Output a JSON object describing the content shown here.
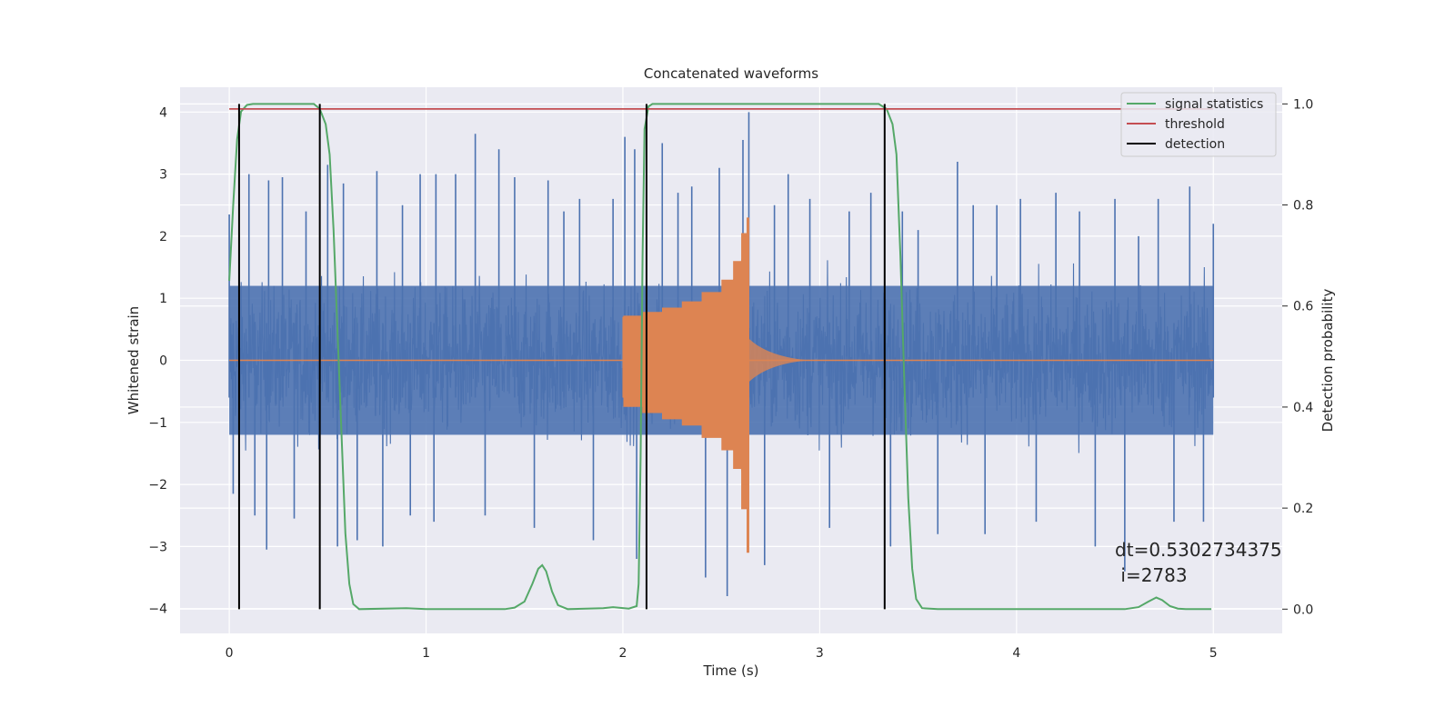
{
  "chart_data": {
    "type": "line",
    "title": "Concatenated waveforms",
    "xlabel": "Time (s)",
    "ylabel": "Whitened strain",
    "y2label": "Detection probability",
    "xlim": [
      -0.25,
      5.35
    ],
    "ylim": [
      -4.4,
      4.4
    ],
    "y2lim": [
      -0.048,
      1.033
    ],
    "xticks": [
      0,
      1,
      2,
      3,
      4,
      5
    ],
    "yticks": [
      -4,
      -3,
      -2,
      -1,
      0,
      1,
      2,
      3,
      4
    ],
    "y2ticks": [
      0.0,
      0.2,
      0.4,
      0.6,
      0.8,
      1.0
    ],
    "grid": true,
    "legend_position": "top-right",
    "annotation": {
      "line1": "dt=0.5302734375",
      "line2": " i=2783",
      "x": 4.5,
      "y": -3.05
    },
    "series": [
      {
        "name": "",
        "kind": "noise",
        "axis": "left",
        "color": "#4c72b0",
        "x_range": [
          0,
          5
        ],
        "spike_samples": [
          [
            0.0,
            2.35
          ],
          [
            0.02,
            -2.15
          ],
          [
            0.05,
            2.05
          ],
          [
            0.1,
            3.0
          ],
          [
            0.13,
            -2.5
          ],
          [
            0.2,
            2.9
          ],
          [
            0.19,
            -3.05
          ],
          [
            0.27,
            2.95
          ],
          [
            0.33,
            -2.55
          ],
          [
            0.39,
            2.4
          ],
          [
            0.5,
            3.15
          ],
          [
            0.55,
            -3.0
          ],
          [
            0.58,
            2.85
          ],
          [
            0.65,
            -2.9
          ],
          [
            0.75,
            3.05
          ],
          [
            0.78,
            -3.0
          ],
          [
            0.88,
            2.5
          ],
          [
            0.92,
            -2.5
          ],
          [
            0.97,
            3.0
          ],
          [
            1.05,
            3.0
          ],
          [
            1.04,
            -2.6
          ],
          [
            1.15,
            3.0
          ],
          [
            1.25,
            3.65
          ],
          [
            1.3,
            -2.5
          ],
          [
            1.37,
            3.4
          ],
          [
            1.45,
            2.95
          ],
          [
            1.55,
            -2.7
          ],
          [
            1.62,
            2.9
          ],
          [
            1.7,
            2.4
          ],
          [
            1.78,
            2.6
          ],
          [
            1.85,
            -2.9
          ],
          [
            1.95,
            2.6
          ],
          [
            2.01,
            3.6
          ],
          [
            2.06,
            3.4
          ],
          [
            2.07,
            -3.2
          ],
          [
            2.2,
            3.5
          ],
          [
            2.28,
            2.7
          ],
          [
            2.35,
            2.8
          ],
          [
            2.42,
            -3.5
          ],
          [
            2.49,
            3.1
          ],
          [
            2.53,
            -3.8
          ],
          [
            2.61,
            3.55
          ],
          [
            2.64,
            4.0
          ],
          [
            2.72,
            -3.3
          ],
          [
            2.77,
            2.5
          ],
          [
            2.84,
            3.0
          ],
          [
            2.95,
            2.6
          ],
          [
            3.05,
            -2.7
          ],
          [
            3.15,
            2.4
          ],
          [
            3.26,
            2.7
          ],
          [
            3.36,
            -3.0
          ],
          [
            3.42,
            2.4
          ],
          [
            3.5,
            2.1
          ],
          [
            3.6,
            -2.8
          ],
          [
            3.7,
            3.2
          ],
          [
            3.78,
            2.5
          ],
          [
            3.84,
            -2.8
          ],
          [
            3.9,
            2.5
          ],
          [
            4.02,
            2.6
          ],
          [
            4.1,
            -2.6
          ],
          [
            4.2,
            2.7
          ],
          [
            4.32,
            2.4
          ],
          [
            4.4,
            -3.0
          ],
          [
            4.5,
            2.6
          ],
          [
            4.55,
            -3.4
          ],
          [
            4.62,
            2.0
          ],
          [
            4.72,
            2.6
          ],
          [
            4.8,
            -2.6
          ],
          [
            4.88,
            2.8
          ],
          [
            4.95,
            -2.6
          ],
          [
            5.0,
            2.2
          ]
        ],
        "envelope_abs": 1.2
      },
      {
        "name": "",
        "kind": "chirp",
        "axis": "left",
        "color": "#dd8452",
        "zero_range": [
          0,
          5
        ],
        "chirp_start": 2.0,
        "chirp_peak": 2.64,
        "envelope": [
          [
            2.0,
            0.7,
            -0.6
          ],
          [
            2.1,
            0.72,
            -0.75
          ],
          [
            2.2,
            0.78,
            -0.85
          ],
          [
            2.3,
            0.85,
            -0.95
          ],
          [
            2.4,
            0.95,
            -1.05
          ],
          [
            2.5,
            1.1,
            -1.25
          ],
          [
            2.56,
            1.3,
            -1.45
          ],
          [
            2.6,
            1.6,
            -1.75
          ],
          [
            2.63,
            2.05,
            -2.4
          ],
          [
            2.64,
            2.3,
            -3.1
          ]
        ],
        "ringdown_end": 2.95
      },
      {
        "name": "signal statistics",
        "axis": "right",
        "color": "#55a868",
        "points": [
          [
            0.0,
            0.65
          ],
          [
            0.02,
            0.8
          ],
          [
            0.04,
            0.93
          ],
          [
            0.06,
            0.985
          ],
          [
            0.09,
            0.998
          ],
          [
            0.12,
            1.0
          ],
          [
            0.43,
            1.0
          ],
          [
            0.46,
            0.99
          ],
          [
            0.49,
            0.96
          ],
          [
            0.51,
            0.9
          ],
          [
            0.53,
            0.75
          ],
          [
            0.55,
            0.55
          ],
          [
            0.57,
            0.35
          ],
          [
            0.59,
            0.15
          ],
          [
            0.61,
            0.05
          ],
          [
            0.63,
            0.01
          ],
          [
            0.66,
            0.0
          ],
          [
            0.9,
            0.002
          ],
          [
            1.0,
            0.0
          ],
          [
            1.4,
            0.0
          ],
          [
            1.45,
            0.003
          ],
          [
            1.5,
            0.015
          ],
          [
            1.54,
            0.05
          ],
          [
            1.57,
            0.08
          ],
          [
            1.59,
            0.087
          ],
          [
            1.61,
            0.075
          ],
          [
            1.64,
            0.035
          ],
          [
            1.67,
            0.008
          ],
          [
            1.72,
            0.0
          ],
          [
            1.9,
            0.002
          ],
          [
            1.95,
            0.004
          ],
          [
            2.03,
            0.001
          ],
          [
            2.07,
            0.006
          ],
          [
            2.08,
            0.05
          ],
          [
            2.09,
            0.3
          ],
          [
            2.1,
            0.7
          ],
          [
            2.11,
            0.95
          ],
          [
            2.13,
            0.995
          ],
          [
            2.15,
            1.0
          ],
          [
            3.3,
            1.0
          ],
          [
            3.34,
            0.99
          ],
          [
            3.37,
            0.96
          ],
          [
            3.39,
            0.9
          ],
          [
            3.41,
            0.7
          ],
          [
            3.43,
            0.45
          ],
          [
            3.45,
            0.22
          ],
          [
            3.47,
            0.08
          ],
          [
            3.49,
            0.02
          ],
          [
            3.52,
            0.002
          ],
          [
            3.6,
            0.0
          ],
          [
            4.55,
            0.0
          ],
          [
            4.62,
            0.004
          ],
          [
            4.67,
            0.015
          ],
          [
            4.71,
            0.023
          ],
          [
            4.74,
            0.018
          ],
          [
            4.78,
            0.006
          ],
          [
            4.82,
            0.001
          ],
          [
            4.86,
            0.0
          ],
          [
            4.99,
            0.0
          ]
        ]
      },
      {
        "name": "threshold",
        "axis": "right",
        "color": "#c44e52",
        "points": [
          [
            0,
            0.99
          ],
          [
            5,
            0.99
          ]
        ]
      },
      {
        "name": "detection",
        "axis": "right",
        "color": "#000000",
        "x": [
          0.05,
          0.46,
          2.12,
          3.33
        ],
        "y_range": [
          0,
          1
        ]
      }
    ]
  }
}
